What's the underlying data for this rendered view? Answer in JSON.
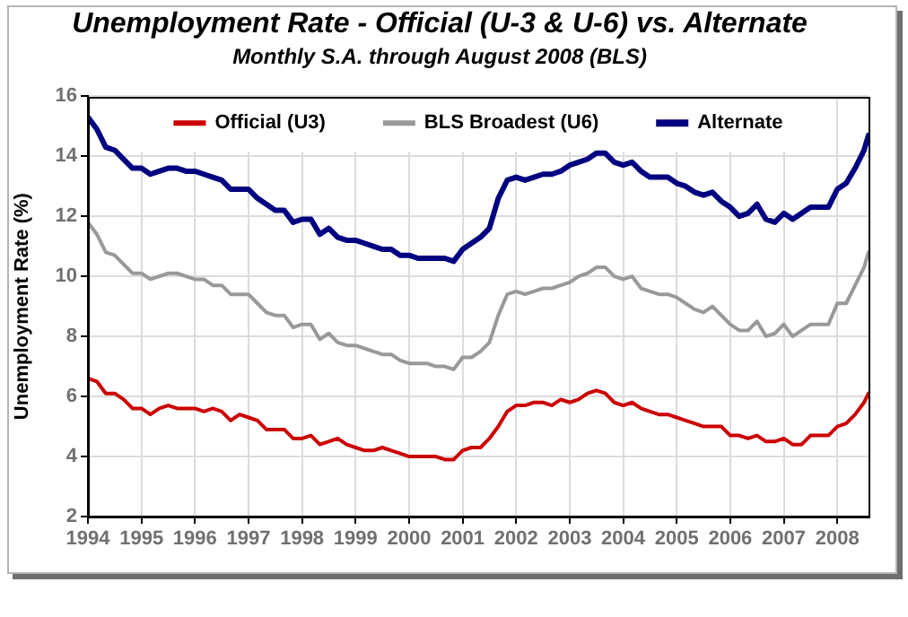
{
  "chart_data": {
    "type": "line",
    "title": "Unemployment Rate - Official (U-3 & U-6) vs. Alternate",
    "subtitle": "Monthly S.A. through August 2008 (BLS)",
    "ylabel": "Unemployment Rate (%)",
    "x": [
      "1994-01",
      "1994-03",
      "1994-05",
      "1994-07",
      "1994-09",
      "1994-11",
      "1995-01",
      "1995-03",
      "1995-05",
      "1995-07",
      "1995-09",
      "1995-11",
      "1996-01",
      "1996-03",
      "1996-05",
      "1996-07",
      "1996-09",
      "1996-11",
      "1997-01",
      "1997-03",
      "1997-05",
      "1997-07",
      "1997-09",
      "1997-11",
      "1998-01",
      "1998-03",
      "1998-05",
      "1998-07",
      "1998-09",
      "1998-11",
      "1999-01",
      "1999-03",
      "1999-05",
      "1999-07",
      "1999-09",
      "1999-11",
      "2000-01",
      "2000-03",
      "2000-05",
      "2000-07",
      "2000-09",
      "2000-11",
      "2001-01",
      "2001-03",
      "2001-05",
      "2001-07",
      "2001-09",
      "2001-11",
      "2002-01",
      "2002-03",
      "2002-05",
      "2002-07",
      "2002-09",
      "2002-11",
      "2003-01",
      "2003-03",
      "2003-05",
      "2003-07",
      "2003-09",
      "2003-11",
      "2004-01",
      "2004-03",
      "2004-05",
      "2004-07",
      "2004-09",
      "2004-11",
      "2005-01",
      "2005-03",
      "2005-05",
      "2005-07",
      "2005-09",
      "2005-11",
      "2006-01",
      "2006-03",
      "2006-05",
      "2006-07",
      "2006-09",
      "2006-11",
      "2007-01",
      "2007-03",
      "2007-05",
      "2007-07",
      "2007-09",
      "2007-11",
      "2008-01",
      "2008-03",
      "2008-05",
      "2008-07",
      "2008-08"
    ],
    "series": [
      {
        "name": "Official (U3)",
        "color": "#cc0000",
        "values": [
          6.6,
          6.5,
          6.1,
          6.1,
          5.9,
          5.6,
          5.6,
          5.4,
          5.6,
          5.7,
          5.6,
          5.6,
          5.6,
          5.5,
          5.6,
          5.5,
          5.2,
          5.4,
          5.3,
          5.2,
          4.9,
          4.9,
          4.9,
          4.6,
          4.6,
          4.7,
          4.4,
          4.5,
          4.6,
          4.4,
          4.3,
          4.2,
          4.2,
          4.3,
          4.2,
          4.1,
          4.0,
          4.0,
          4.0,
          4.0,
          3.9,
          3.9,
          4.2,
          4.3,
          4.3,
          4.6,
          5.0,
          5.5,
          5.7,
          5.7,
          5.8,
          5.8,
          5.7,
          5.9,
          5.8,
          5.9,
          6.1,
          6.2,
          6.1,
          5.8,
          5.7,
          5.8,
          5.6,
          5.5,
          5.4,
          5.4,
          5.3,
          5.2,
          5.1,
          5.0,
          5.0,
          5.0,
          4.7,
          4.7,
          4.6,
          4.7,
          4.5,
          4.5,
          4.6,
          4.4,
          4.4,
          4.7,
          4.7,
          4.7,
          5.0,
          5.1,
          5.4,
          5.8,
          6.1
        ]
      },
      {
        "name": "BLS Broadest (U6)",
        "color": "#999999",
        "values": [
          11.8,
          11.4,
          10.8,
          10.7,
          10.4,
          10.1,
          10.1,
          9.9,
          10.0,
          10.1,
          10.1,
          10.0,
          9.9,
          9.9,
          9.7,
          9.7,
          9.4,
          9.4,
          9.4,
          9.1,
          8.8,
          8.7,
          8.7,
          8.3,
          8.4,
          8.4,
          7.9,
          8.1,
          7.8,
          7.7,
          7.7,
          7.6,
          7.5,
          7.4,
          7.4,
          7.2,
          7.1,
          7.1,
          7.1,
          7.0,
          7.0,
          6.9,
          7.3,
          7.3,
          7.5,
          7.8,
          8.7,
          9.4,
          9.5,
          9.4,
          9.5,
          9.6,
          9.6,
          9.7,
          9.8,
          10.0,
          10.1,
          10.3,
          10.3,
          10.0,
          9.9,
          10.0,
          9.6,
          9.5,
          9.4,
          9.4,
          9.3,
          9.1,
          8.9,
          8.8,
          9.0,
          8.7,
          8.4,
          8.2,
          8.2,
          8.5,
          8.0,
          8.1,
          8.4,
          8.0,
          8.2,
          8.4,
          8.4,
          8.4,
          9.1,
          9.1,
          9.7,
          10.3,
          10.8
        ]
      },
      {
        "name": "Alternate",
        "color": "#000080",
        "values": [
          15.3,
          14.9,
          14.3,
          14.2,
          13.9,
          13.6,
          13.6,
          13.4,
          13.5,
          13.6,
          13.6,
          13.5,
          13.5,
          13.4,
          13.3,
          13.2,
          12.9,
          12.9,
          12.9,
          12.6,
          12.4,
          12.2,
          12.2,
          11.8,
          11.9,
          11.9,
          11.4,
          11.6,
          11.3,
          11.2,
          11.2,
          11.1,
          11.0,
          10.9,
          10.9,
          10.7,
          10.7,
          10.6,
          10.6,
          10.6,
          10.6,
          10.5,
          10.9,
          11.1,
          11.3,
          11.6,
          12.6,
          13.2,
          13.3,
          13.2,
          13.3,
          13.4,
          13.4,
          13.5,
          13.7,
          13.8,
          13.9,
          14.1,
          14.1,
          13.8,
          13.7,
          13.8,
          13.5,
          13.3,
          13.3,
          13.3,
          13.1,
          13.0,
          12.8,
          12.7,
          12.8,
          12.5,
          12.3,
          12.0,
          12.1,
          12.4,
          11.9,
          11.8,
          12.1,
          11.9,
          12.1,
          12.3,
          12.3,
          12.3,
          12.9,
          13.1,
          13.6,
          14.2,
          14.7
        ]
      }
    ],
    "xlim": [
      "1994-01",
      "2008-08"
    ],
    "xticks": [
      "1994",
      "1995",
      "1996",
      "1997",
      "1998",
      "1999",
      "2000",
      "2001",
      "2002",
      "2003",
      "2004",
      "2005",
      "2006",
      "2007",
      "2008"
    ],
    "ylim": [
      2,
      16
    ],
    "yticks": [
      2,
      4,
      6,
      8,
      10,
      12,
      14,
      16
    ],
    "grid": true,
    "legend": "top"
  }
}
